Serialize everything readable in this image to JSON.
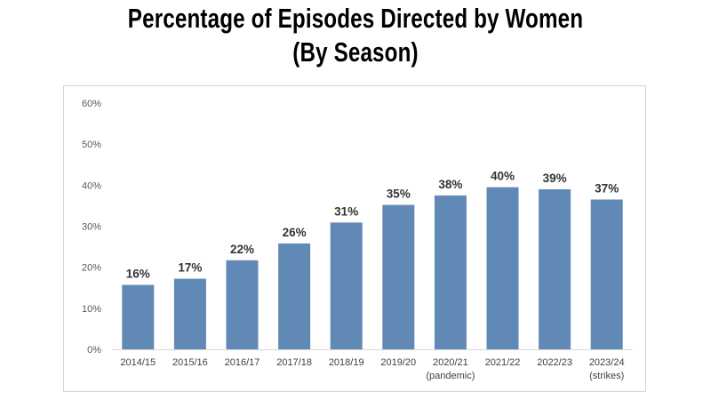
{
  "title": {
    "line1": "Percentage of Episodes Directed by Women",
    "line2": "(By Season)"
  },
  "colors": {
    "bar": "#6189b5",
    "axis": "#d9d9d9"
  },
  "chart_data": {
    "type": "bar",
    "title": "Percentage of Episodes Directed by Women (By Season)",
    "categories": [
      [
        "2014/15"
      ],
      [
        "2015/16"
      ],
      [
        "2016/17"
      ],
      [
        "2017/18"
      ],
      [
        "2018/19"
      ],
      [
        "2019/20"
      ],
      [
        "2020/21",
        "(pandemic)"
      ],
      [
        "2021/22"
      ],
      [
        "2022/23"
      ],
      [
        "2023/24",
        "(strikes)"
      ]
    ],
    "values": [
      15.7,
      17.2,
      21.7,
      25.8,
      30.9,
      35.2,
      37.5,
      39.5,
      39.0,
      36.5
    ],
    "data_labels": [
      "16%",
      "17%",
      "22%",
      "26%",
      "31%",
      "35%",
      "38%",
      "40%",
      "39%",
      "37%"
    ],
    "ylim": [
      0,
      60
    ],
    "yticks": [
      {
        "value": 0,
        "label": "0%"
      },
      {
        "value": 10,
        "label": "10%"
      },
      {
        "value": 20,
        "label": "20%"
      },
      {
        "value": 30,
        "label": "30%"
      },
      {
        "value": 40,
        "label": "40%"
      },
      {
        "value": 50,
        "label": "50%"
      },
      {
        "value": 60,
        "label": "60%"
      }
    ],
    "grid": false,
    "legend": "none",
    "xlabel": "",
    "ylabel": ""
  }
}
